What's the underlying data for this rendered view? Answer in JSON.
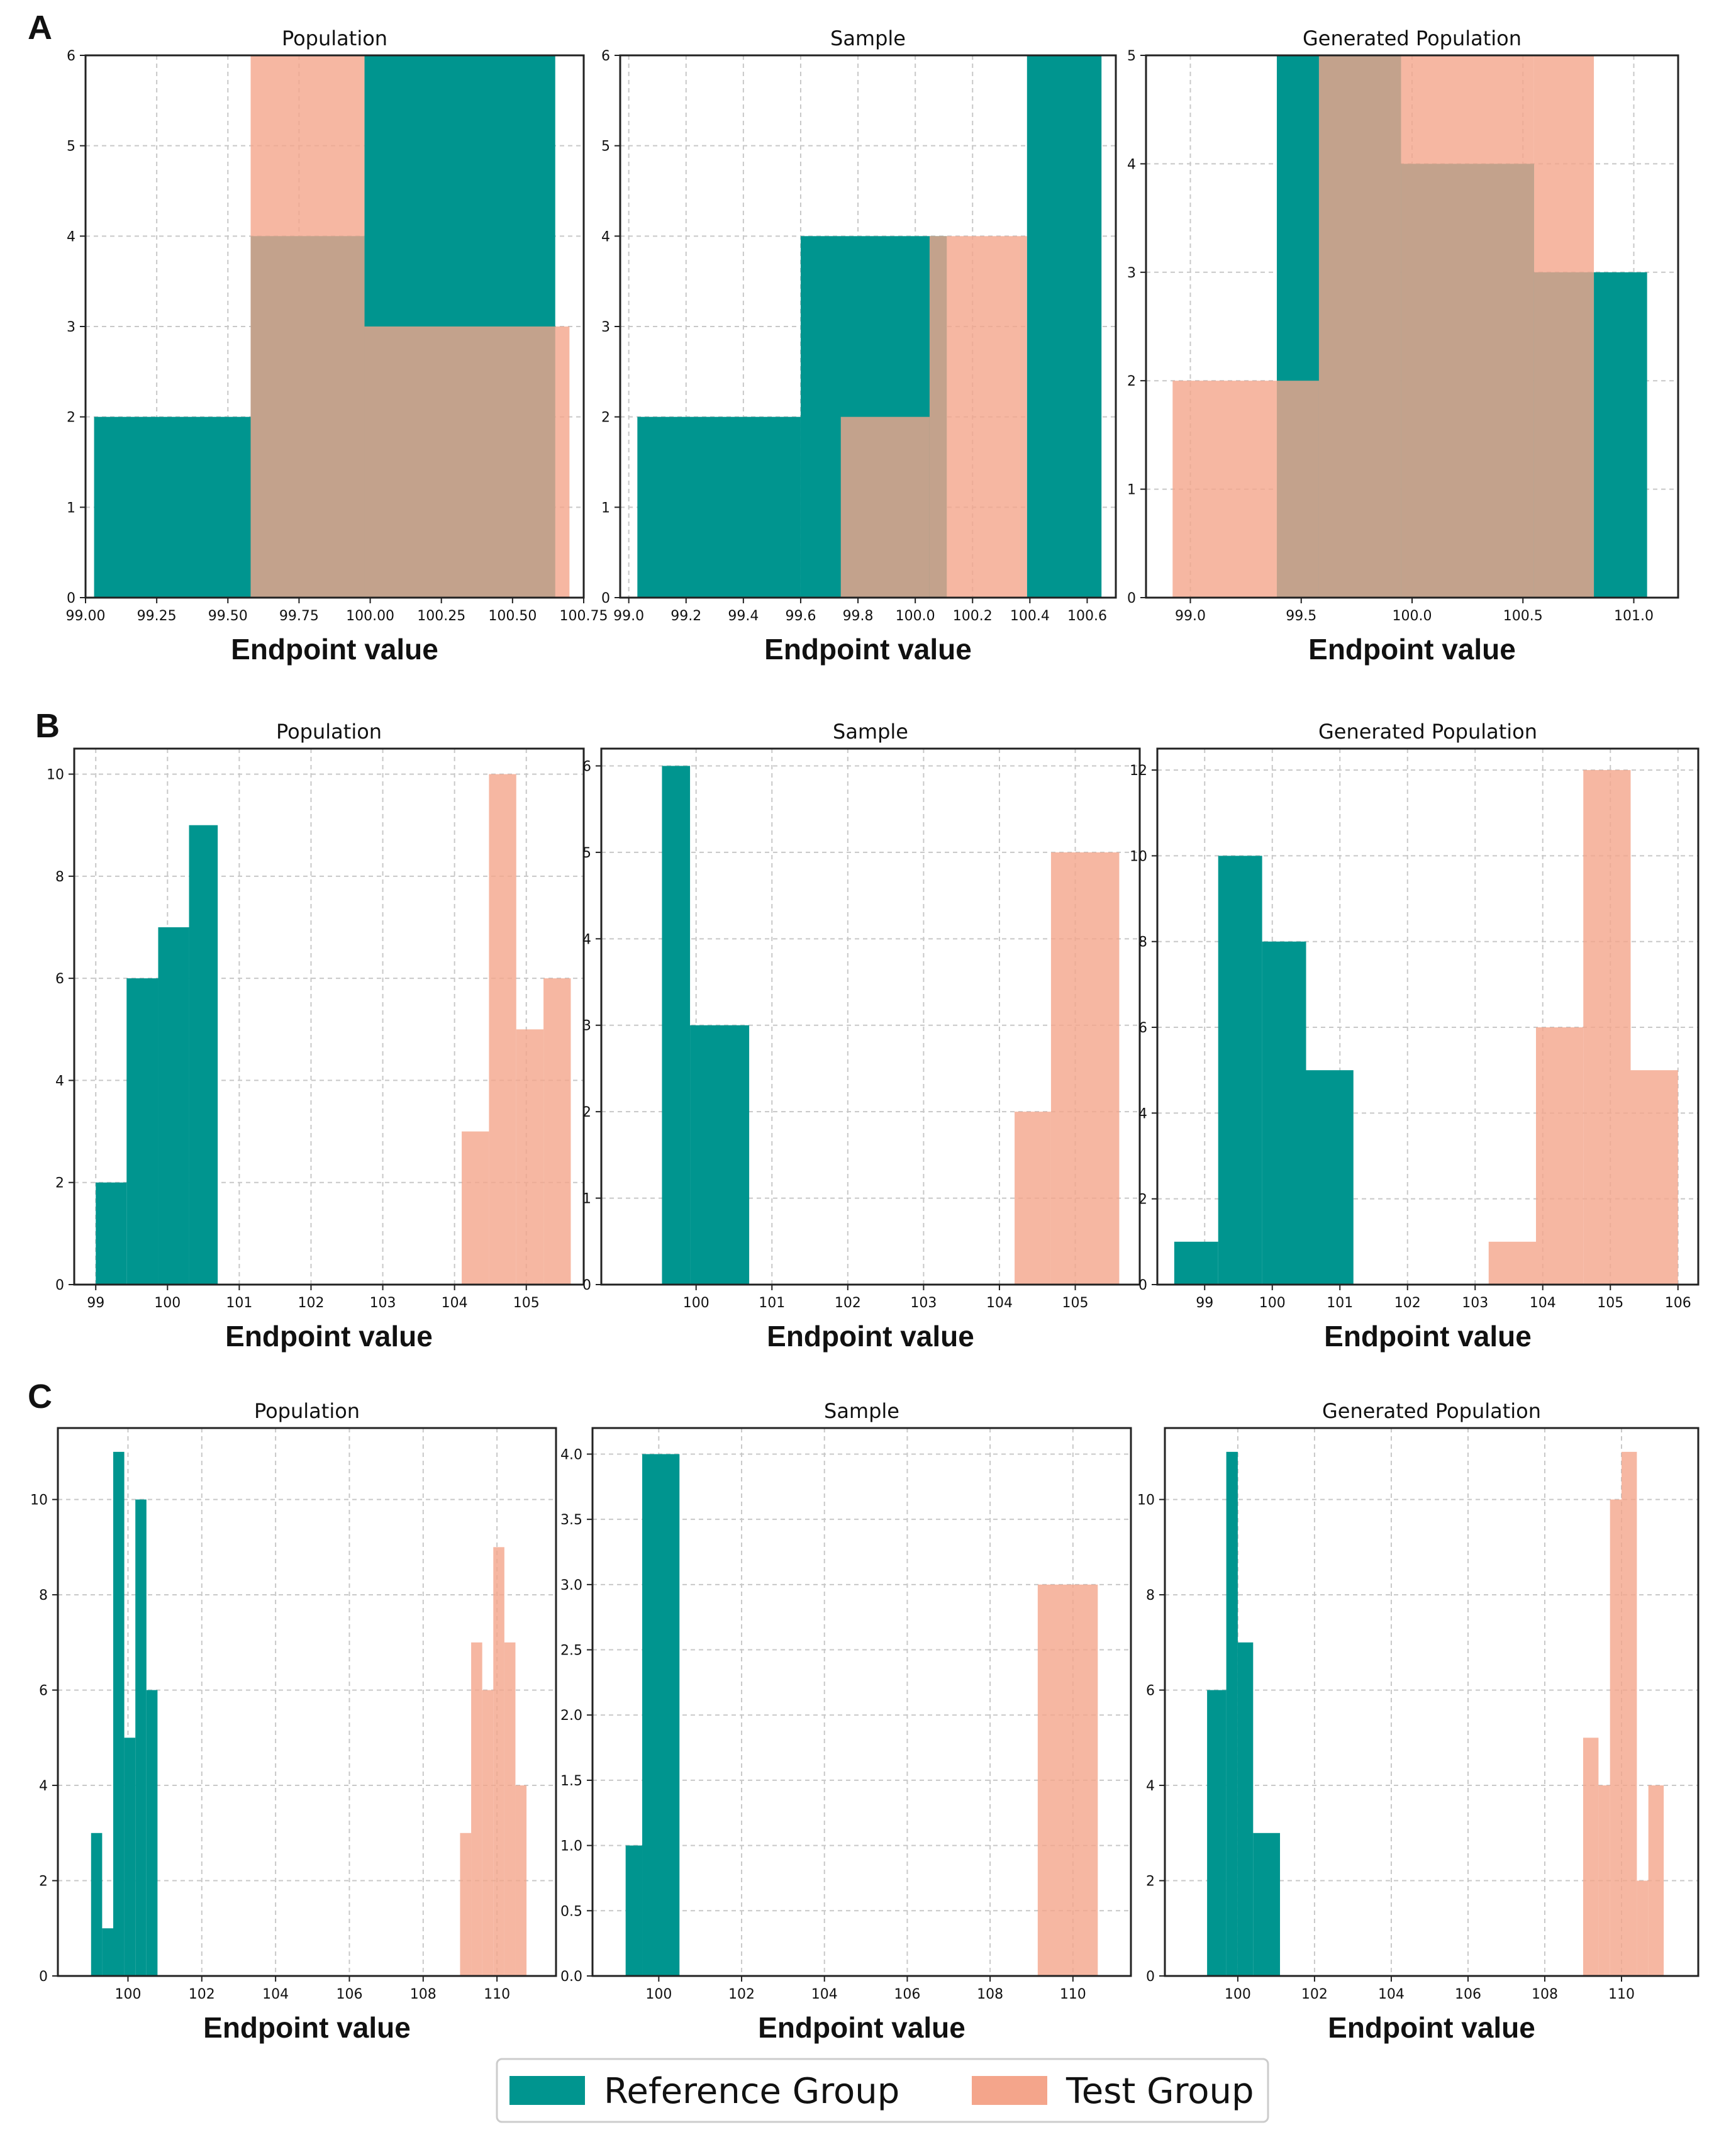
{
  "colors": {
    "reference": "#00958f",
    "test": "#f4a58b",
    "overlap": "#d29b84"
  },
  "legend": {
    "reference_label": "Reference Group",
    "test_label": "Test Group"
  },
  "chart_data": [
    {
      "panel": "A",
      "title": "Population",
      "type": "bar",
      "xlabel": "Endpoint value",
      "xlim": [
        99.0,
        100.75
      ],
      "ylim": [
        0,
        6
      ],
      "xticks": [
        99.0,
        99.25,
        99.5,
        99.75,
        100.0,
        100.25,
        100.5,
        100.75
      ],
      "xtick_labels": [
        "99.00",
        "99.25",
        "99.50",
        "99.75",
        "100.00",
        "100.25",
        "100.50",
        "100.75"
      ],
      "yticks": [
        0,
        1,
        2,
        3,
        4,
        5,
        6
      ],
      "ytick_labels": [
        "0",
        "1",
        "2",
        "3",
        "4",
        "5",
        "6"
      ],
      "series": [
        {
          "name": "Reference Group",
          "bins": [
            [
              99.03,
              99.58,
              2
            ],
            [
              99.58,
              99.98,
              4
            ],
            [
              99.98,
              100.65,
              6
            ]
          ]
        },
        {
          "name": "Test Group",
          "bins": [
            [
              99.58,
              99.98,
              6
            ],
            [
              99.98,
              100.7,
              3
            ]
          ]
        }
      ]
    },
    {
      "panel": "A",
      "title": "Sample",
      "type": "bar",
      "xlabel": "Endpoint value",
      "xlim": [
        98.97,
        100.7
      ],
      "ylim": [
        0,
        6
      ],
      "xticks": [
        99.0,
        99.2,
        99.4,
        99.6,
        99.8,
        100.0,
        100.2,
        100.4,
        100.6
      ],
      "xtick_labels": [
        "99.0",
        "99.2",
        "99.4",
        "99.6",
        "99.8",
        "100.0",
        "100.2",
        "100.4",
        "100.6"
      ],
      "yticks": [
        0,
        1,
        2,
        3,
        4,
        5,
        6
      ],
      "ytick_labels": [
        "0",
        "1",
        "2",
        "3",
        "4",
        "5",
        "6"
      ],
      "series": [
        {
          "name": "Reference Group",
          "bins": [
            [
              99.03,
              99.6,
              2
            ],
            [
              99.6,
              100.11,
              4
            ],
            [
              100.39,
              100.65,
              6
            ]
          ]
        },
        {
          "name": "Test Group",
          "bins": [
            [
              99.74,
              100.05,
              2
            ],
            [
              100.05,
              100.39,
              4
            ]
          ]
        }
      ]
    },
    {
      "panel": "A",
      "title": "Generated Population",
      "type": "bar",
      "xlabel": "Endpoint value",
      "xlim": [
        98.8,
        101.2
      ],
      "ylim": [
        0,
        5
      ],
      "xticks": [
        99.0,
        99.5,
        100.0,
        100.5,
        101.0
      ],
      "xtick_labels": [
        "99.0",
        "99.5",
        "100.0",
        "100.5",
        "101.0"
      ],
      "yticks": [
        0,
        1,
        2,
        3,
        4,
        5
      ],
      "ytick_labels": [
        "0",
        "1",
        "2",
        "3",
        "4",
        "5"
      ],
      "series": [
        {
          "name": "Reference Group",
          "bins": [
            [
              99.39,
              99.58,
              5
            ],
            [
              99.58,
              99.95,
              5
            ],
            [
              99.95,
              100.55,
              4
            ],
            [
              100.55,
              100.82,
              3
            ],
            [
              100.82,
              101.06,
              3
            ]
          ]
        },
        {
          "name": "Test Group",
          "bins": [
            [
              98.92,
              99.39,
              2
            ],
            [
              99.39,
              99.58,
              2
            ],
            [
              99.58,
              99.95,
              5
            ],
            [
              99.95,
              100.55,
              5
            ],
            [
              100.55,
              100.82,
              5
            ]
          ]
        }
      ]
    },
    {
      "panel": "B",
      "title": "Population",
      "type": "bar",
      "xlabel": "Endpoint value",
      "xlim": [
        98.7,
        105.8
      ],
      "ylim": [
        0,
        10.5
      ],
      "xticks": [
        99,
        100,
        101,
        102,
        103,
        104,
        105
      ],
      "xtick_labels": [
        "99",
        "100",
        "101",
        "102",
        "103",
        "104",
        "105"
      ],
      "yticks": [
        0,
        2,
        4,
        6,
        8,
        10
      ],
      "ytick_labels": [
        "0",
        "2",
        "4",
        "6",
        "8",
        "10"
      ],
      "series": [
        {
          "name": "Reference Group",
          "bins": [
            [
              99.0,
              99.43,
              2
            ],
            [
              99.43,
              99.87,
              6
            ],
            [
              99.87,
              100.3,
              7
            ],
            [
              100.3,
              100.7,
              9
            ]
          ]
        },
        {
          "name": "Test Group",
          "bins": [
            [
              104.1,
              104.48,
              3
            ],
            [
              104.48,
              104.86,
              10
            ],
            [
              104.86,
              105.24,
              5
            ],
            [
              105.24,
              105.62,
              6
            ]
          ]
        }
      ]
    },
    {
      "panel": "B",
      "title": "Sample",
      "type": "bar",
      "xlabel": "Endpoint value",
      "xlim": [
        98.75,
        105.85
      ],
      "ylim": [
        0,
        6.2
      ],
      "xticks": [
        100,
        101,
        102,
        103,
        104,
        105
      ],
      "xtick_labels": [
        "100",
        "101",
        "102",
        "103",
        "104",
        "105"
      ],
      "yticks": [
        0,
        1,
        2,
        3,
        4,
        5,
        6
      ],
      "ytick_labels": [
        "0",
        "1",
        "2",
        "3",
        "4",
        "5",
        "6"
      ],
      "series": [
        {
          "name": "Reference Group",
          "bins": [
            [
              99.55,
              99.92,
              6
            ],
            [
              99.92,
              100.7,
              3
            ]
          ]
        },
        {
          "name": "Test Group",
          "bins": [
            [
              104.2,
              104.68,
              2
            ],
            [
              104.68,
              105.58,
              5
            ]
          ]
        }
      ]
    },
    {
      "panel": "B",
      "title": "Generated Population",
      "type": "bar",
      "xlabel": "Endpoint value",
      "xlim": [
        98.3,
        106.3
      ],
      "ylim": [
        0,
        12.5
      ],
      "xticks": [
        99,
        100,
        101,
        102,
        103,
        104,
        105,
        106
      ],
      "xtick_labels": [
        "99",
        "100",
        "101",
        "102",
        "103",
        "104",
        "105",
        "106"
      ],
      "yticks": [
        0,
        2,
        4,
        6,
        8,
        10,
        12
      ],
      "ytick_labels": [
        "0",
        "2",
        "4",
        "6",
        "8",
        "10",
        "12"
      ],
      "series": [
        {
          "name": "Reference Group",
          "bins": [
            [
              98.55,
              99.2,
              1
            ],
            [
              99.2,
              99.85,
              10
            ],
            [
              99.85,
              100.5,
              8
            ],
            [
              100.5,
              101.2,
              5
            ]
          ]
        },
        {
          "name": "Test Group",
          "bins": [
            [
              103.2,
              103.9,
              1
            ],
            [
              103.9,
              104.6,
              6
            ],
            [
              104.6,
              105.3,
              12
            ],
            [
              105.3,
              106.0,
              5
            ]
          ]
        }
      ]
    },
    {
      "panel": "C",
      "title": "Population",
      "type": "bar",
      "xlabel": "Endpoint value",
      "xlim": [
        98.1,
        111.6
      ],
      "ylim": [
        0,
        11.5
      ],
      "xticks": [
        100,
        102,
        104,
        106,
        108,
        110
      ],
      "xtick_labels": [
        "100",
        "102",
        "104",
        "106",
        "108",
        "110"
      ],
      "yticks": [
        0,
        2,
        4,
        6,
        8,
        10
      ],
      "ytick_labels": [
        "0",
        "2",
        "4",
        "6",
        "8",
        "10"
      ],
      "series": [
        {
          "name": "Reference Group",
          "bins": [
            [
              99.0,
              99.3,
              3
            ],
            [
              99.3,
              99.6,
              1
            ],
            [
              99.6,
              99.9,
              11
            ],
            [
              99.9,
              100.2,
              5
            ],
            [
              100.2,
              100.5,
              10
            ],
            [
              100.5,
              100.8,
              6
            ]
          ]
        },
        {
          "name": "Test Group",
          "bins": [
            [
              109.0,
              109.3,
              3
            ],
            [
              109.3,
              109.6,
              7
            ],
            [
              109.6,
              109.9,
              6
            ],
            [
              109.9,
              110.2,
              9
            ],
            [
              110.2,
              110.5,
              7
            ],
            [
              110.5,
              110.8,
              4
            ]
          ]
        }
      ]
    },
    {
      "panel": "C",
      "title": "Sample",
      "type": "bar",
      "xlabel": "Endpoint value",
      "xlim": [
        98.4,
        111.4
      ],
      "ylim": [
        0,
        4.2
      ],
      "xticks": [
        100,
        102,
        104,
        106,
        108,
        110
      ],
      "xtick_labels": [
        "100",
        "102",
        "104",
        "106",
        "108",
        "110"
      ],
      "yticks": [
        0,
        0.5,
        1.0,
        1.5,
        2.0,
        2.5,
        3.0,
        3.5,
        4.0
      ],
      "ytick_labels": [
        "0.0",
        "0.5",
        "1.0",
        "1.5",
        "2.0",
        "2.5",
        "3.0",
        "3.5",
        "4.0"
      ],
      "series": [
        {
          "name": "Reference Group",
          "bins": [
            [
              99.2,
              99.6,
              1
            ],
            [
              99.6,
              100.5,
              4
            ]
          ]
        },
        {
          "name": "Test Group",
          "bins": [
            [
              109.15,
              110.6,
              3
            ]
          ]
        }
      ]
    },
    {
      "panel": "C",
      "title": "Generated Population",
      "type": "bar",
      "xlabel": "Endpoint value",
      "xlim": [
        98.1,
        112.0
      ],
      "ylim": [
        0,
        11.5
      ],
      "xticks": [
        100,
        102,
        104,
        106,
        108,
        110
      ],
      "xtick_labels": [
        "100",
        "102",
        "104",
        "106",
        "108",
        "110"
      ],
      "yticks": [
        0,
        2,
        4,
        6,
        8,
        10
      ],
      "ytick_labels": [
        "0",
        "2",
        "4",
        "6",
        "8",
        "10"
      ],
      "series": [
        {
          "name": "Reference Group",
          "bins": [
            [
              99.2,
              99.7,
              6
            ],
            [
              99.7,
              100.0,
              11
            ],
            [
              100.0,
              100.4,
              7
            ],
            [
              100.4,
              101.1,
              3
            ]
          ]
        },
        {
          "name": "Test Group",
          "bins": [
            [
              109.0,
              109.4,
              5
            ],
            [
              109.4,
              109.7,
              4
            ],
            [
              109.7,
              110.0,
              10
            ],
            [
              110.0,
              110.4,
              11
            ],
            [
              110.4,
              110.7,
              2
            ],
            [
              110.7,
              111.1,
              4
            ]
          ]
        }
      ]
    }
  ]
}
